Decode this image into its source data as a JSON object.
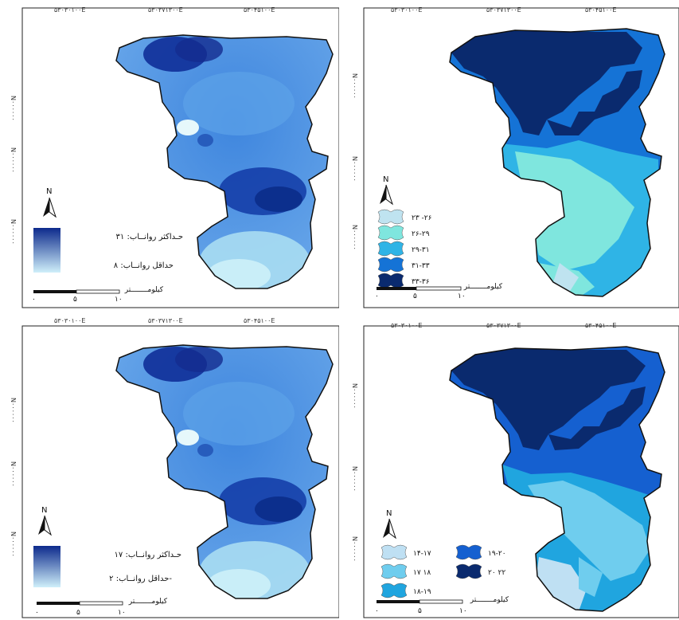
{
  "grid_labels": {
    "e1": "۵۳۰۳۰۱۰۰E",
    "e2": "۵۳۰۳۷۱۳۰۰E",
    "e3": "۵۳۰۴۵۱۰۰E",
    "n1": "N۰۰۰۰۰۰",
    "n2": "N۰۰۰۰۰۰",
    "n3": "N۰۰۰۰۰۰"
  },
  "north_label": "N",
  "scale": {
    "unit": "کیلومــــــــتر",
    "t0": "۰",
    "t5": "۵",
    "t10": "۱۰"
  },
  "panels": [
    {
      "type": "continuous",
      "legend_max": "حـداکثر روانــاب: ۳۱",
      "legend_min": "حداقل روانــاب: ۸",
      "ramp_dark": "#0d2a8c",
      "ramp_light": "#cfeffa"
    },
    {
      "type": "classified",
      "classes": [
        {
          "label": "۲۳ -۲۶",
          "color": "#bfe3f0"
        },
        {
          "label": "۲۶-۲۹",
          "color": "#7fe6de"
        },
        {
          "label": "۲۹-۳۱",
          "color": "#2fb4e6"
        },
        {
          "label": "۳۱-۳۳",
          "color": "#1573d6"
        },
        {
          "label": "۳۳-۳۶",
          "color": "#0a2a6e"
        }
      ]
    },
    {
      "type": "continuous",
      "legend_max": "حـداکثر روانــاب: ۱۷",
      "legend_min": "حداقل روانــاب: ۲-",
      "ramp_dark": "#0d2a8c",
      "ramp_light": "#cfeffa"
    },
    {
      "type": "classified",
      "classes": [
        {
          "label": "۱۴-۱۷",
          "color": "#bfe0f3"
        },
        {
          "label": "۱۷ ۱۸",
          "color": "#6fcdee"
        },
        {
          "label": "۱۸-۱۹",
          "color": "#20a5df"
        },
        {
          "label": "۱۹-۲۰",
          "color": "#1560d0"
        },
        {
          "label": "۲۰ ۲۲",
          "color": "#0a2a6e"
        }
      ]
    }
  ]
}
